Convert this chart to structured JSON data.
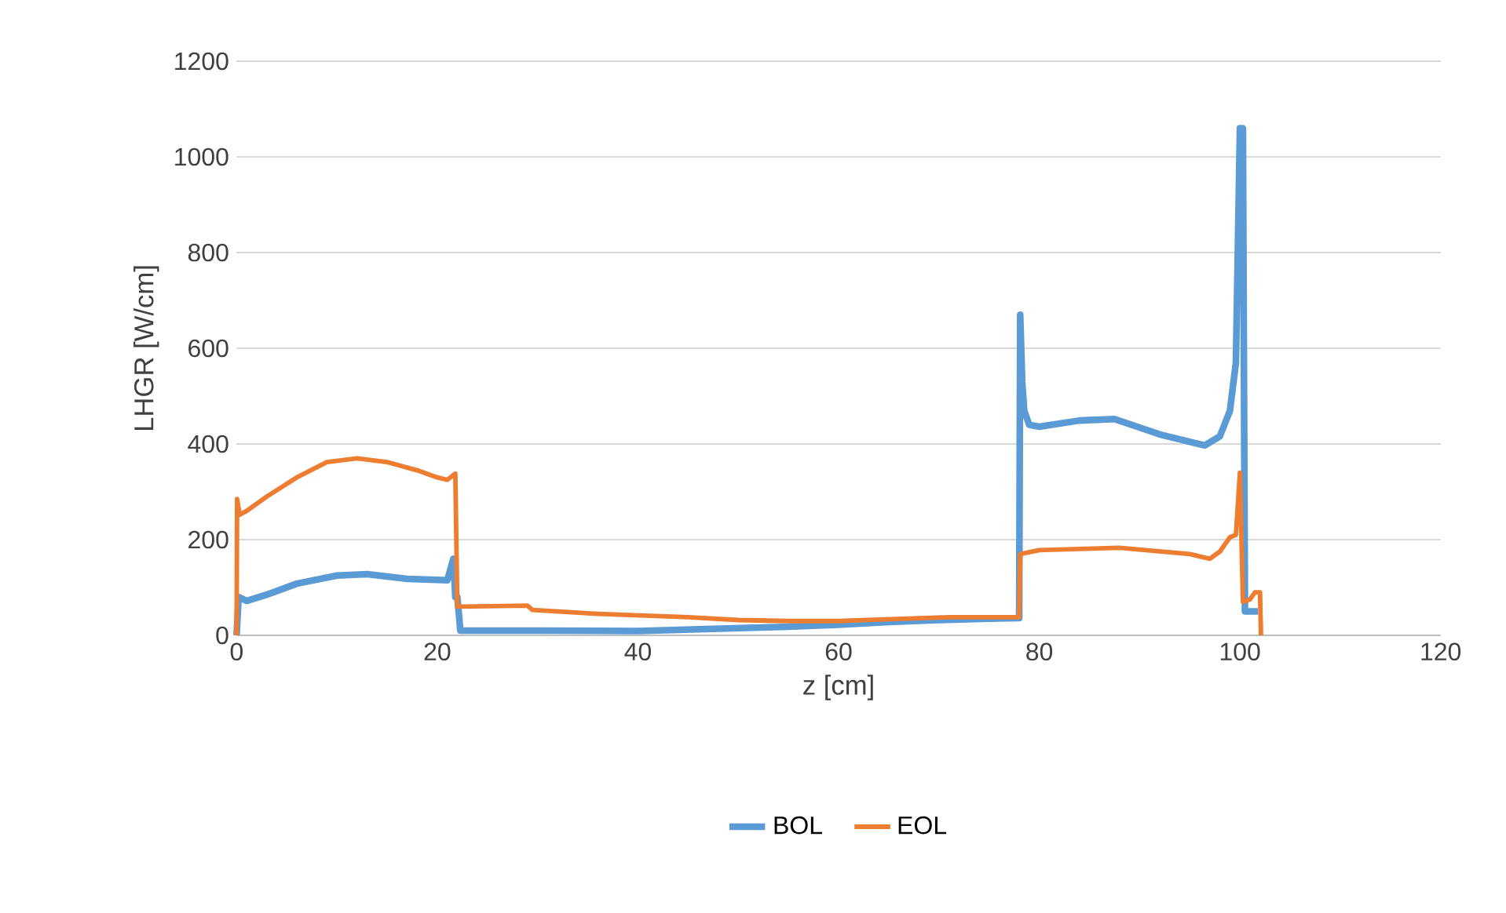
{
  "chart_data": {
    "type": "line",
    "xlabel": "z [cm]",
    "ylabel": "LHGR [W/cm]",
    "xlim": [
      0,
      120
    ],
    "xticks": [
      0,
      20,
      40,
      60,
      80,
      100,
      120
    ],
    "ylim": [
      0,
      1200
    ],
    "yticks": [
      0,
      200,
      400,
      600,
      800,
      1000,
      1200
    ],
    "grid": "y",
    "legend": "bottom",
    "marker": "none",
    "line_style": "solid",
    "series": [
      {
        "name": "BOL",
        "color": "#5b9bd5",
        "x": [
          0,
          0.2,
          1,
          3,
          6,
          10,
          13,
          17,
          21,
          21.6,
          21.8,
          22,
          22.3,
          30,
          40,
          46.8,
          55,
          60,
          65,
          70,
          75,
          78,
          78.1,
          78.3,
          78.5,
          79,
          80,
          84,
          87.5,
          92,
          96.5,
          98,
          99,
          99.6,
          100,
          100.3,
          100.5,
          101.8
        ],
        "values": [
          0,
          80,
          72,
          85,
          108,
          125,
          128,
          118,
          115,
          160,
          80,
          80,
          10,
          10,
          9,
          13,
          18,
          22,
          28,
          32,
          35,
          36,
          670,
          530,
          470,
          440,
          436,
          449,
          452,
          420,
          397,
          416,
          469,
          570,
          1060,
          1060,
          50,
          50
        ]
      },
      {
        "name": "EOL",
        "color": "#ed7d31",
        "x": [
          0,
          0.05,
          0.3,
          1,
          3,
          6,
          9,
          12,
          15,
          18,
          20,
          21,
          21.8,
          22,
          22.3,
          29,
          29.5,
          36,
          45,
          50,
          55,
          60,
          64,
          71,
          78,
          78.1,
          80,
          88,
          95,
          97,
          98,
          99,
          99.6,
          100,
          100.3,
          101,
          101.5,
          102,
          102.1
        ],
        "values": [
          0,
          285,
          252,
          260,
          290,
          330,
          362,
          370,
          362,
          345,
          330,
          325,
          338,
          60,
          60,
          62,
          53,
          45,
          38,
          32,
          30,
          30,
          33,
          38,
          38,
          170,
          178,
          183,
          170,
          160,
          175,
          205,
          210,
          340,
          70,
          75,
          90,
          90,
          0
        ]
      }
    ]
  }
}
